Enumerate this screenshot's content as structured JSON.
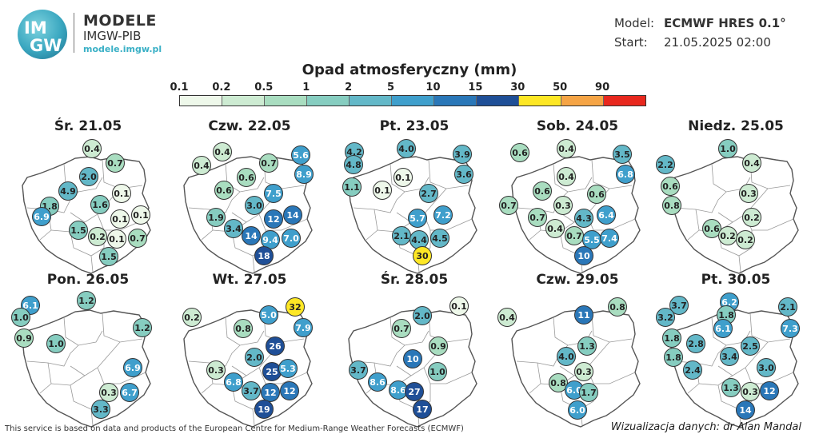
{
  "header": {
    "logo_text_top": "IM",
    "logo_text_bottom": "GW",
    "brand_title": "MODELE",
    "brand_subtitle": "IMGW-PIB",
    "brand_url": "modele.imgw.pl",
    "model_label": "Model:",
    "model_value": "ECMWF HRES 0.1°",
    "start_label": "Start:",
    "start_value": "21.05.2025 02:00"
  },
  "legend": {
    "title": "Opad atmosferyczny (mm)",
    "ticks": [
      "0.1",
      "0.2",
      "0.5",
      "1",
      "2",
      "5",
      "10",
      "15",
      "30",
      "50",
      "90"
    ],
    "colors": [
      "#eef8ea",
      "#cdebd2",
      "#a9ddc0",
      "#86cdc0",
      "#63b8c8",
      "#3f9fcc",
      "#2a77b8",
      "#1f4f97",
      "#fde725",
      "#f5a445",
      "#e8281e"
    ]
  },
  "days": [
    {
      "label": "Śr. 21.05",
      "values": [
        "0.4",
        "0.7",
        "2.0",
        "4.9",
        "0.1",
        "1.8",
        "1.6",
        "6.9",
        "0.1",
        "0.1",
        "1.5",
        "0.2",
        "0.1",
        "0.7",
        "1.5"
      ]
    },
    {
      "label": "Czw. 22.05",
      "values": [
        "0.4",
        "0.4",
        "0.7",
        "5.6",
        "8.9",
        "0.6",
        "0.6",
        "7.5",
        "3.0",
        "1.9",
        "12",
        "14",
        "3.4",
        "14",
        "9.4",
        "7.0",
        "18"
      ]
    },
    {
      "label": "Pt. 23.05",
      "values": [
        "4.2",
        "4.0",
        "3.9",
        "4.8",
        "3.6",
        "1.1",
        "0.1",
        "0.1",
        "2.7",
        "5.7",
        "7.2",
        "2.1",
        "4.4",
        "4.5",
        "30"
      ]
    },
    {
      "label": "Sob. 24.05",
      "values": [
        "0.6",
        "0.4",
        "3.5",
        "6.8",
        "0.4",
        "0.6",
        "0.6",
        "0.7",
        "0.3",
        "4.3",
        "6.4",
        "0.7",
        "0.4",
        "0.7",
        "5.5",
        "7.4",
        "10"
      ]
    },
    {
      "label": "Niedz. 25.05",
      "values": [
        "1.0",
        "2.2",
        "0.4",
        "0.6",
        "0.3",
        "0.8",
        "0.2",
        "0.6",
        "0.2",
        "0.2"
      ]
    },
    {
      "label": "Pon. 26.05",
      "values": [
        "6.1",
        "1.2",
        "1.0",
        "0.9",
        "1.0",
        "1.2",
        "6.9",
        "0.3",
        "6.7",
        "3.3"
      ]
    },
    {
      "label": "Wt. 27.05",
      "values": [
        "32",
        "0.2",
        "5.0",
        "7.9",
        "0.8",
        "26",
        "2.0",
        "25",
        "5.3",
        "0.3",
        "6.8",
        "3.7",
        "12",
        "12",
        "19"
      ]
    },
    {
      "label": "Śr. 28.05",
      "values": [
        "0.1",
        "2.0",
        "0.7",
        "0.9",
        "10",
        "3.7",
        "1.0",
        "8.6",
        "8.6",
        "27",
        "17"
      ]
    },
    {
      "label": "Czw. 29.05",
      "values": [
        "0.4",
        "11",
        "0.8",
        "1.3",
        "4.0",
        "0.3",
        "0.8",
        "6.0",
        "1.7",
        "6.0"
      ]
    },
    {
      "label": "Pt. 30.05",
      "values": [
        "3.7",
        "6.2",
        "2.1",
        "3.2",
        "1.8",
        "7.3",
        "1.8",
        "2.8",
        "6.1",
        "2.5",
        "1.8",
        "3.4",
        "2.4",
        "1.3",
        "3.0",
        "0.3",
        "12",
        "14"
      ]
    }
  ],
  "footer": {
    "left": "This service is based on data and products of the European Centre for Medium-Range Weather Forecasts (ECMWF)",
    "right": "Wizualizacja danych: dr Alan Mandal"
  }
}
